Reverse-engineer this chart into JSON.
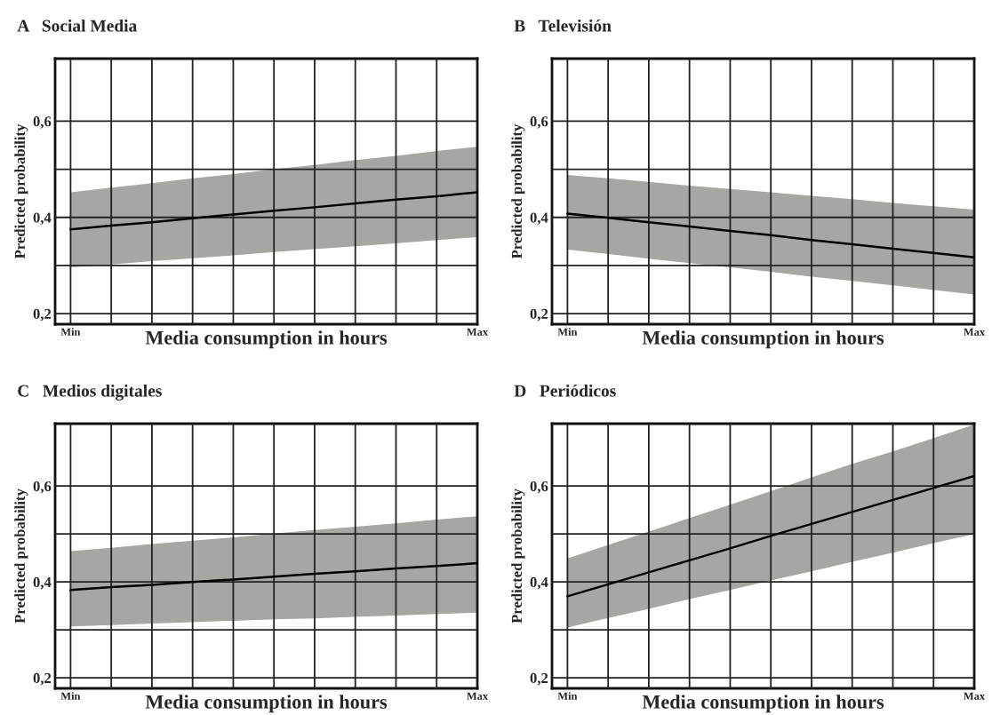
{
  "chart_data": [
    {
      "type": "line",
      "title": "A   Social Media",
      "xlabel": "Media consumption in hours",
      "ylabel": "Predicted probability",
      "categories": [
        "Min",
        null,
        null,
        null,
        null,
        null,
        null,
        null,
        null,
        null,
        "Max"
      ],
      "ylim": [
        0.178,
        0.73
      ],
      "yticks": [
        {
          "value": 0.2,
          "label": "0,2"
        },
        {
          "value": 0.3,
          "label": null
        },
        {
          "value": 0.4,
          "label": "0,4"
        },
        {
          "value": 0.5,
          "label": null
        },
        {
          "value": 0.6,
          "label": "0,6"
        }
      ],
      "grid": true,
      "series": [
        {
          "color": "#000000",
          "values": [
            0.375,
            0.383,
            0.39,
            0.398,
            0.406,
            0.414,
            0.421,
            0.429,
            0.437,
            0.444,
            0.452
          ],
          "lower": [
            0.296,
            0.302,
            0.309,
            0.315,
            0.321,
            0.328,
            0.334,
            0.34,
            0.346,
            0.353,
            0.359
          ],
          "upper": [
            0.452,
            0.462,
            0.471,
            0.481,
            0.49,
            0.5,
            0.509,
            0.519,
            0.528,
            0.538,
            0.547
          ]
        }
      ]
    },
    {
      "type": "line",
      "title": "B   Televisión",
      "xlabel": "Media consumption in hours",
      "ylabel": "Predicted probability",
      "categories": [
        "Min",
        null,
        null,
        null,
        null,
        null,
        null,
        null,
        null,
        null,
        "Max"
      ],
      "ylim": [
        0.178,
        0.73
      ],
      "yticks": [
        {
          "value": 0.2,
          "label": "0,2"
        },
        {
          "value": 0.3,
          "label": null
        },
        {
          "value": 0.4,
          "label": "0,4"
        },
        {
          "value": 0.5,
          "label": null
        },
        {
          "value": 0.6,
          "label": "0,6"
        }
      ],
      "grid": true,
      "series": [
        {
          "color": "#000000",
          "values": [
            0.408,
            0.399,
            0.39,
            0.381,
            0.372,
            0.363,
            0.353,
            0.344,
            0.335,
            0.326,
            0.317
          ],
          "lower": [
            0.333,
            0.324,
            0.314,
            0.305,
            0.296,
            0.287,
            0.277,
            0.268,
            0.259,
            0.249,
            0.24
          ],
          "upper": [
            0.488,
            0.481,
            0.474,
            0.466,
            0.459,
            0.452,
            0.445,
            0.438,
            0.43,
            0.423,
            0.416
          ]
        }
      ]
    },
    {
      "type": "line",
      "title": "C   Medios digitales",
      "xlabel": "Media consumption in hours",
      "ylabel": "Predicted probability",
      "categories": [
        "Min",
        null,
        null,
        null,
        null,
        null,
        null,
        null,
        null,
        null,
        "Max"
      ],
      "ylim": [
        0.178,
        0.73
      ],
      "yticks": [
        {
          "value": 0.2,
          "label": "0,2"
        },
        {
          "value": 0.3,
          "label": null
        },
        {
          "value": 0.4,
          "label": "0,4"
        },
        {
          "value": 0.5,
          "label": null
        },
        {
          "value": 0.6,
          "label": "0,6"
        }
      ],
      "grid": true,
      "series": [
        {
          "color": "#000000",
          "values": [
            0.383,
            0.389,
            0.394,
            0.4,
            0.405,
            0.411,
            0.417,
            0.422,
            0.428,
            0.433,
            0.439
          ],
          "lower": [
            0.307,
            0.31,
            0.313,
            0.316,
            0.319,
            0.322,
            0.324,
            0.327,
            0.33,
            0.333,
            0.336
          ],
          "upper": [
            0.464,
            0.471,
            0.479,
            0.486,
            0.493,
            0.501,
            0.508,
            0.515,
            0.522,
            0.53,
            0.537
          ]
        }
      ]
    },
    {
      "type": "line",
      "title": "D   Periódicos",
      "xlabel": "Media consumption in hours",
      "ylabel": "Predicted probability",
      "categories": [
        "Min",
        null,
        null,
        null,
        null,
        null,
        null,
        null,
        null,
        null,
        "Max"
      ],
      "ylim": [
        0.178,
        0.73
      ],
      "yticks": [
        {
          "value": 0.2,
          "label": "0,2"
        },
        {
          "value": 0.3,
          "label": null
        },
        {
          "value": 0.4,
          "label": "0,4"
        },
        {
          "value": 0.5,
          "label": null
        },
        {
          "value": 0.6,
          "label": "0,6"
        }
      ],
      "grid": true,
      "series": [
        {
          "color": "#000000",
          "values": [
            0.37,
            0.395,
            0.42,
            0.445,
            0.47,
            0.496,
            0.521,
            0.546,
            0.571,
            0.596,
            0.621
          ],
          "lower": [
            0.305,
            0.325,
            0.344,
            0.364,
            0.383,
            0.403,
            0.422,
            0.442,
            0.461,
            0.481,
            0.5
          ],
          "upper": [
            0.449,
            0.477,
            0.505,
            0.533,
            0.561,
            0.589,
            0.618,
            0.646,
            0.672,
            0.7,
            0.728
          ]
        }
      ]
    }
  ]
}
